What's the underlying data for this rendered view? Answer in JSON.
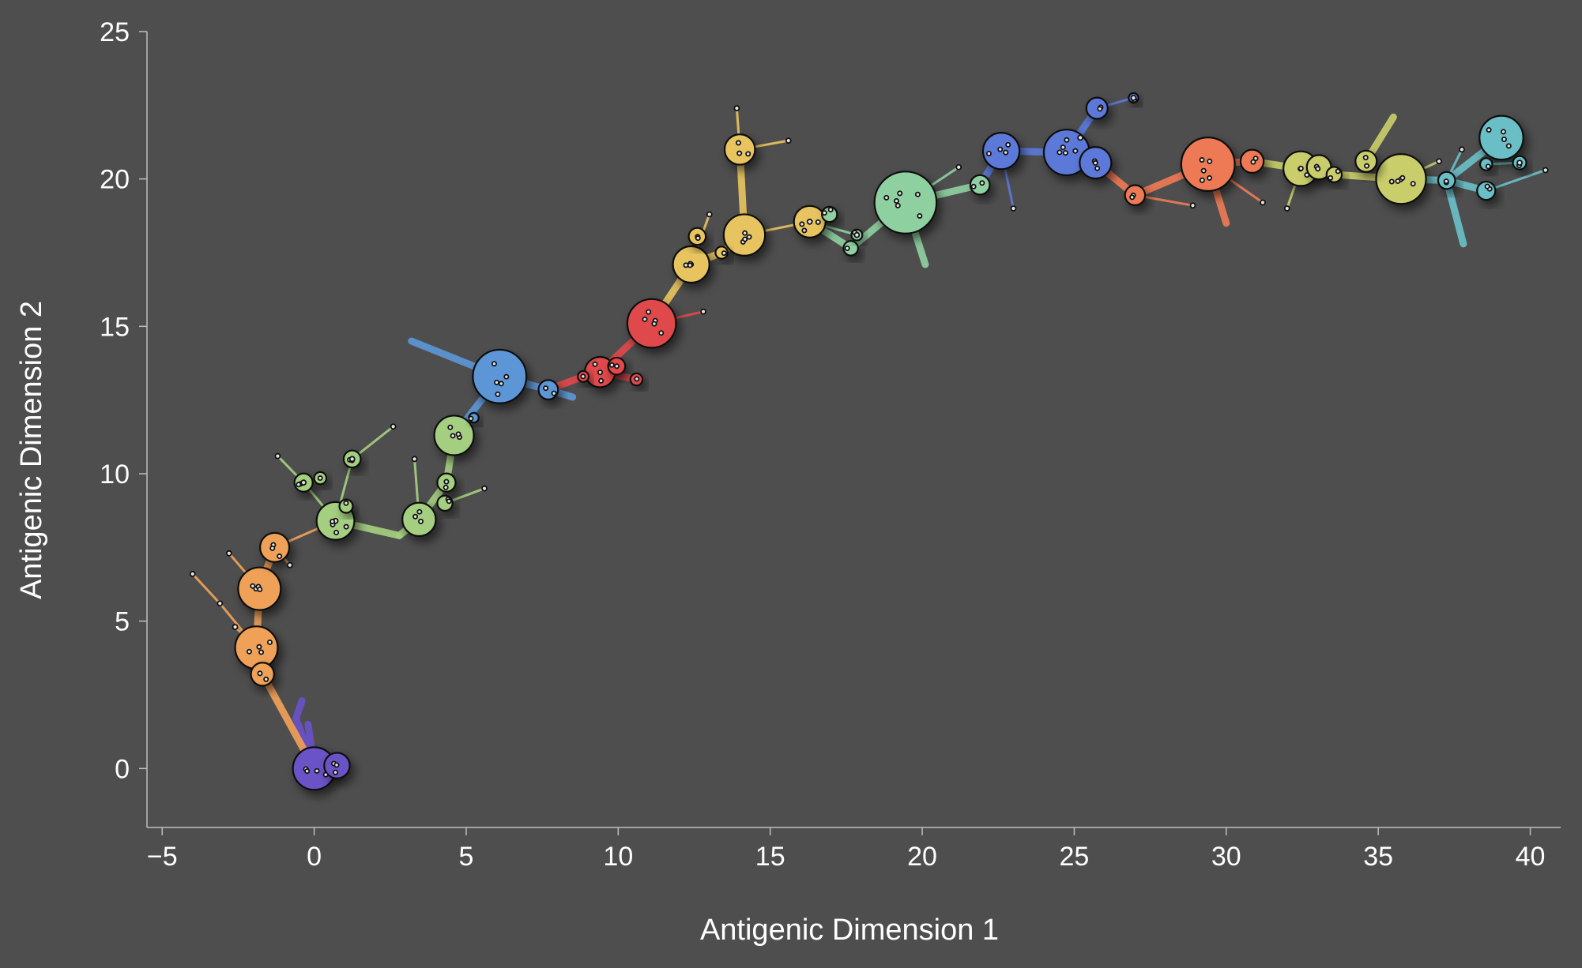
{
  "chart_data": {
    "type": "scatter",
    "title": "",
    "xlabel": "Antigenic Dimension 1",
    "ylabel": "Antigenic Dimension 2",
    "xlim": [
      -5.5,
      41
    ],
    "ylim": [
      -2,
      25
    ],
    "xticks": [
      -5,
      0,
      5,
      10,
      15,
      20,
      25,
      30,
      35,
      40
    ],
    "yticks": [
      0,
      5,
      10,
      15,
      20,
      25
    ],
    "xtick_labels": [
      "−5",
      "0",
      "5",
      "10",
      "15",
      "20",
      "25",
      "30",
      "35",
      "40"
    ],
    "ytick_labels": [
      "0",
      "5",
      "10",
      "15",
      "20",
      "25"
    ],
    "grid": false,
    "legend": "none",
    "background": "#4e4e4e",
    "clusters": [
      {
        "color": "#6a52c6",
        "nodes": [
          [
            0.0,
            0.0,
            0.7
          ],
          [
            0.75,
            0.1,
            0.42
          ]
        ],
        "edges": [
          [
            0.0,
            0.0,
            -0.6,
            1.7
          ],
          [
            -0.6,
            1.7,
            -0.4,
            2.3
          ],
          [
            0.0,
            0.0,
            -0.2,
            1.5
          ]
        ]
      },
      {
        "color": "#f0a158",
        "nodes": [
          [
            -1.8,
            6.1,
            0.7
          ],
          [
            -1.9,
            4.1,
            0.7
          ],
          [
            -1.3,
            7.5,
            0.48
          ],
          [
            -1.7,
            3.2,
            0.38
          ]
        ],
        "edges": [
          [
            0.0,
            0.0,
            -1.7,
            3.2
          ],
          [
            -1.7,
            3.2,
            -1.9,
            4.1
          ],
          [
            -1.9,
            4.1,
            -1.8,
            6.1
          ],
          [
            -1.8,
            6.1,
            -1.3,
            7.5
          ],
          [
            -1.3,
            7.5,
            0.7,
            8.4
          ],
          [
            -1.9,
            4.1,
            -3.1,
            5.6
          ],
          [
            -3.1,
            5.6,
            -4.0,
            6.6
          ],
          [
            -1.8,
            6.1,
            -2.8,
            7.3
          ],
          [
            -1.9,
            4.1,
            -2.6,
            4.8
          ],
          [
            -1.3,
            7.5,
            -0.8,
            6.9
          ]
        ]
      },
      {
        "color": "#a5cf80",
        "nodes": [
          [
            0.7,
            8.4,
            0.62
          ],
          [
            3.45,
            8.45,
            0.55
          ],
          [
            4.6,
            11.3,
            0.65
          ],
          [
            -0.35,
            9.7,
            0.3
          ],
          [
            1.25,
            10.5,
            0.28
          ],
          [
            4.35,
            9.7,
            0.3
          ],
          [
            4.3,
            9.0,
            0.25
          ],
          [
            1.05,
            8.9,
            0.22
          ],
          [
            0.2,
            9.85,
            0.2
          ]
        ],
        "edges": [
          [
            0.7,
            8.4,
            2.8,
            7.9
          ],
          [
            2.8,
            7.9,
            3.45,
            8.45
          ],
          [
            3.45,
            8.45,
            4.35,
            9.7
          ],
          [
            4.35,
            9.7,
            4.6,
            11.3
          ],
          [
            3.45,
            8.45,
            3.3,
            10.5
          ],
          [
            0.7,
            8.4,
            -0.35,
            9.7
          ],
          [
            0.7,
            8.4,
            1.25,
            10.5
          ],
          [
            1.25,
            10.5,
            2.6,
            11.6
          ],
          [
            -0.35,
            9.7,
            -1.2,
            10.6
          ],
          [
            4.3,
            9.0,
            5.6,
            9.5
          ]
        ]
      },
      {
        "color": "#5d96d6",
        "nodes": [
          [
            6.1,
            13.3,
            0.88
          ],
          [
            7.7,
            12.85,
            0.32
          ],
          [
            5.25,
            11.9,
            0.16
          ]
        ],
        "edges": [
          [
            4.6,
            11.3,
            6.1,
            13.3
          ],
          [
            6.1,
            13.3,
            7.7,
            12.85
          ],
          [
            7.7,
            12.85,
            8.5,
            12.6
          ],
          [
            6.1,
            13.3,
            3.2,
            14.5
          ]
        ]
      },
      {
        "color": "#e0494b",
        "nodes": [
          [
            11.1,
            15.1,
            0.8
          ],
          [
            9.4,
            13.45,
            0.5
          ],
          [
            9.95,
            13.65,
            0.28
          ],
          [
            10.6,
            13.2,
            0.2
          ],
          [
            8.85,
            13.3,
            0.18
          ]
        ],
        "edges": [
          [
            7.7,
            12.85,
            8.85,
            13.3
          ],
          [
            8.85,
            13.3,
            9.4,
            13.45
          ],
          [
            9.4,
            13.45,
            11.1,
            15.1
          ],
          [
            9.4,
            13.45,
            10.6,
            13.2
          ],
          [
            11.1,
            15.1,
            12.8,
            15.5
          ]
        ]
      },
      {
        "color": "#e7c45f",
        "nodes": [
          [
            14.15,
            18.1,
            0.68
          ],
          [
            12.4,
            17.1,
            0.6
          ],
          [
            16.3,
            18.55,
            0.52
          ],
          [
            14.0,
            21.0,
            0.5
          ],
          [
            12.6,
            18.05,
            0.28
          ],
          [
            13.4,
            17.5,
            0.2
          ]
        ],
        "edges": [
          [
            11.1,
            15.1,
            12.4,
            17.1
          ],
          [
            12.4,
            17.1,
            13.4,
            17.5
          ],
          [
            13.4,
            17.5,
            14.15,
            18.1
          ],
          [
            14.15,
            18.1,
            14.0,
            21.0
          ],
          [
            14.0,
            21.0,
            13.9,
            22.4
          ],
          [
            14.0,
            21.0,
            15.6,
            21.3
          ],
          [
            14.15,
            18.1,
            16.3,
            18.55
          ],
          [
            12.4,
            17.1,
            13.0,
            18.8
          ]
        ]
      },
      {
        "color": "#8fd0a0",
        "nodes": [
          [
            19.45,
            19.2,
            1.02
          ],
          [
            21.9,
            19.8,
            0.32
          ],
          [
            17.65,
            17.65,
            0.24
          ],
          [
            16.95,
            18.8,
            0.25
          ],
          [
            17.85,
            18.1,
            0.18
          ]
        ],
        "edges": [
          [
            16.3,
            18.55,
            17.65,
            17.65
          ],
          [
            17.65,
            17.65,
            19.45,
            19.2
          ],
          [
            19.45,
            19.2,
            21.9,
            19.8
          ],
          [
            19.45,
            19.2,
            20.1,
            17.1
          ],
          [
            19.45,
            19.2,
            21.2,
            20.4
          ],
          [
            16.3,
            18.55,
            17.85,
            18.1
          ]
        ]
      },
      {
        "color": "#5c79d9",
        "nodes": [
          [
            24.75,
            20.9,
            0.75
          ],
          [
            22.6,
            20.95,
            0.6
          ],
          [
            25.7,
            20.55,
            0.52
          ],
          [
            25.75,
            22.4,
            0.35
          ],
          [
            26.95,
            22.75,
            0.16
          ]
        ],
        "edges": [
          [
            21.9,
            19.8,
            22.6,
            20.95
          ],
          [
            22.6,
            20.95,
            24.75,
            20.9
          ],
          [
            24.75,
            20.9,
            25.7,
            20.55
          ],
          [
            24.75,
            20.9,
            25.75,
            22.4
          ],
          [
            25.75,
            22.4,
            26.95,
            22.75
          ],
          [
            22.6,
            20.95,
            23.0,
            19.0
          ],
          [
            25.75,
            22.4,
            25.2,
            21.4
          ]
        ]
      },
      {
        "color": "#ee7a55",
        "nodes": [
          [
            29.4,
            20.5,
            0.88
          ],
          [
            30.85,
            20.6,
            0.38
          ],
          [
            27.0,
            19.45,
            0.33
          ]
        ],
        "edges": [
          [
            25.7,
            20.55,
            27.0,
            19.45
          ],
          [
            27.0,
            19.45,
            29.4,
            20.5
          ],
          [
            29.4,
            20.5,
            30.85,
            20.6
          ],
          [
            29.4,
            20.5,
            30.0,
            18.5
          ],
          [
            27.0,
            19.45,
            28.9,
            19.1
          ],
          [
            29.4,
            20.5,
            31.2,
            19.2
          ]
        ]
      },
      {
        "color": "#c9cd6a",
        "nodes": [
          [
            35.75,
            20.0,
            0.82
          ],
          [
            32.45,
            20.35,
            0.57
          ],
          [
            33.05,
            20.4,
            0.4
          ],
          [
            34.6,
            20.6,
            0.35
          ],
          [
            33.55,
            20.15,
            0.25
          ]
        ],
        "edges": [
          [
            30.85,
            20.6,
            32.45,
            20.35
          ],
          [
            32.45,
            20.35,
            33.55,
            20.15
          ],
          [
            33.55,
            20.15,
            35.75,
            20.0
          ],
          [
            34.6,
            20.6,
            35.5,
            22.1
          ],
          [
            32.45,
            20.35,
            32.0,
            19.0
          ],
          [
            35.75,
            20.0,
            37.0,
            20.6
          ]
        ]
      },
      {
        "color": "#6bbfc7",
        "nodes": [
          [
            39.05,
            21.4,
            0.72
          ],
          [
            37.25,
            19.95,
            0.28
          ],
          [
            38.55,
            19.6,
            0.3
          ],
          [
            39.65,
            20.55,
            0.22
          ],
          [
            38.55,
            20.5,
            0.2
          ]
        ],
        "edges": [
          [
            35.75,
            20.0,
            37.25,
            19.95
          ],
          [
            37.25,
            19.95,
            39.05,
            21.4
          ],
          [
            37.25,
            19.95,
            38.55,
            19.6
          ],
          [
            37.25,
            19.95,
            37.8,
            17.8
          ],
          [
            38.55,
            19.6,
            40.5,
            20.3
          ],
          [
            37.25,
            19.95,
            37.75,
            21.0
          ],
          [
            38.55,
            20.5,
            39.65,
            20.55
          ]
        ]
      }
    ]
  }
}
